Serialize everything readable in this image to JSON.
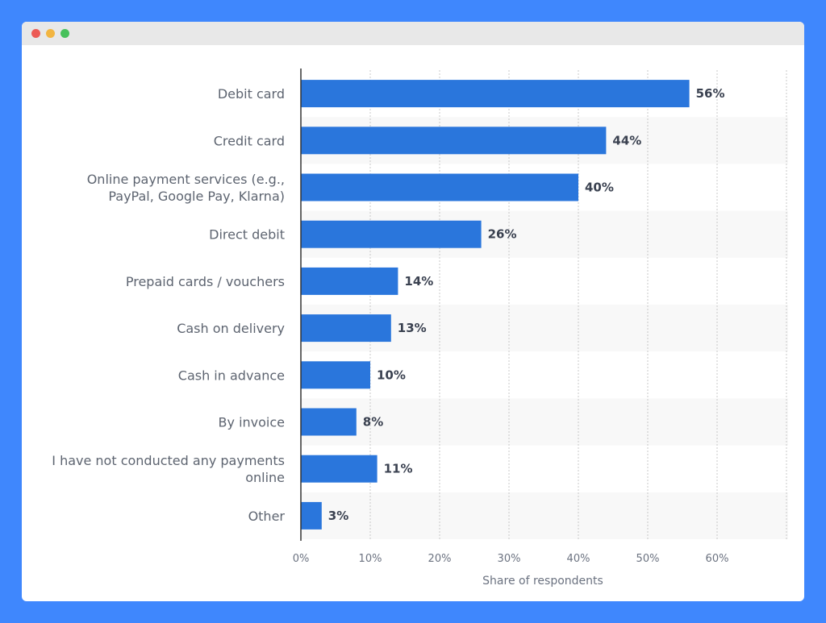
{
  "window": {
    "controls": [
      "close",
      "minimize",
      "maximize"
    ]
  },
  "colors": {
    "background": "#3f87fd",
    "bar": "#2a76dc",
    "band": "#f8f8f8"
  },
  "chart_data": {
    "type": "bar",
    "orientation": "horizontal",
    "categories": [
      "Debit card",
      "Credit card",
      "Online payment services (e.g., PayPal, Google Pay, Klarna)",
      "Direct debit",
      "Prepaid cards / vouchers",
      "Cash on delivery",
      "Cash in advance",
      "By invoice",
      "I have not conducted any payments online",
      "Other"
    ],
    "category_lines": [
      [
        "Debit card"
      ],
      [
        "Credit card"
      ],
      [
        "Online payment services (e.g.,",
        "PayPal, Google Pay, Klarna)"
      ],
      [
        "Direct debit"
      ],
      [
        "Prepaid cards / vouchers"
      ],
      [
        "Cash on delivery"
      ],
      [
        "Cash in advance"
      ],
      [
        "By invoice"
      ],
      [
        "I have not conducted any payments",
        "online"
      ],
      [
        "Other"
      ]
    ],
    "values": [
      56,
      44,
      40,
      26,
      14,
      13,
      10,
      8,
      11,
      3
    ],
    "value_labels": [
      "56%",
      "44%",
      "40%",
      "26%",
      "14%",
      "13%",
      "10%",
      "8%",
      "11%",
      "3%"
    ],
    "xlabel": "Share of respondents",
    "ylabel": "",
    "xlim": [
      0,
      70
    ],
    "xticks": [
      0,
      10,
      20,
      30,
      40,
      50,
      60
    ],
    "xtick_labels": [
      "0%",
      "10%",
      "20%",
      "30%",
      "40%",
      "50%",
      "60%"
    ],
    "grid": true,
    "legend": "none"
  }
}
